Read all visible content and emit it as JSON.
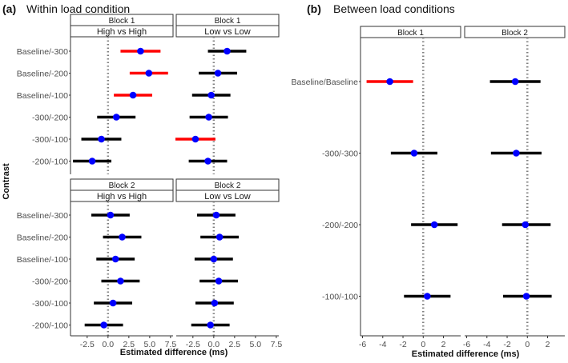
{
  "panel_a": {
    "label": "(a)",
    "title": "Within load condition",
    "ylabel": "Contrast",
    "xlabel": "Estimated difference (ms)"
  },
  "panel_b": {
    "label": "(b)",
    "title": "Between load conditions",
    "xlabel": "Estimated difference (ms)"
  },
  "colors": {
    "significant": "#ff0000",
    "nonsignificant": "#000000",
    "point": "#0000ff",
    "zero_line": "#808080"
  },
  "chart_data": [
    {
      "type": "scatter",
      "id": "a_b1_hh",
      "strip_top": "Block 1",
      "strip_bottom": "High vs High",
      "categories": [
        "Baseline/-300",
        "Baseline/-200",
        "Baseline/-100",
        "-300/-200",
        "-300/-100",
        "-200/-100"
      ],
      "estimate": [
        3.9,
        4.9,
        3.0,
        1.0,
        -0.8,
        -1.9
      ],
      "lower": [
        1.5,
        2.6,
        0.7,
        -1.3,
        -3.2,
        -4.2
      ],
      "upper": [
        6.3,
        7.2,
        5.3,
        3.3,
        1.6,
        0.4
      ],
      "significant": [
        true,
        true,
        true,
        false,
        false,
        false
      ],
      "xlim": [
        -4.5,
        7.8
      ],
      "xticks": [
        -2.5,
        0.0,
        2.5,
        5.0,
        7.5
      ],
      "xtick_labels": [
        "-2.5",
        "0.0",
        "2.5",
        "5.0",
        "7.5"
      ],
      "show_xticks": false,
      "show_yticks": true
    },
    {
      "type": "scatter",
      "id": "a_b1_ll",
      "strip_top": "Block 1",
      "strip_bottom": "Low vs Low",
      "categories": [
        "Baseline/-300",
        "Baseline/-200",
        "Baseline/-100",
        "-300/-200",
        "-300/-100",
        "-200/-100"
      ],
      "estimate": [
        1.6,
        0.5,
        -0.3,
        -0.6,
        -2.2,
        -0.7
      ],
      "lower": [
        -0.7,
        -1.8,
        -2.6,
        -2.9,
        -4.6,
        -3.0
      ],
      "upper": [
        3.9,
        2.8,
        2.0,
        1.7,
        0.2,
        1.6
      ],
      "significant": [
        false,
        false,
        false,
        false,
        true,
        false
      ],
      "xlim": [
        -4.5,
        7.8
      ],
      "xticks": [
        -2.5,
        0.0,
        2.5,
        5.0,
        7.5
      ],
      "xtick_labels": [
        "-2.5",
        "0.0",
        "2.5",
        "5.0",
        "7.5"
      ],
      "show_xticks": false,
      "show_yticks": false
    },
    {
      "type": "scatter",
      "id": "a_b2_hh",
      "strip_top": "Block 2",
      "strip_bottom": "High vs High",
      "categories": [
        "Baseline/-300",
        "Baseline/-200",
        "Baseline/-100",
        "-300/-200",
        "-300/-100",
        "-200/-100"
      ],
      "estimate": [
        0.3,
        1.7,
        0.9,
        1.5,
        0.6,
        -0.5
      ],
      "lower": [
        -2.0,
        -0.6,
        -1.4,
        -0.8,
        -1.7,
        -2.8
      ],
      "upper": [
        2.6,
        4.0,
        3.2,
        3.8,
        2.9,
        1.8
      ],
      "significant": [
        false,
        false,
        false,
        false,
        false,
        false
      ],
      "xlim": [
        -4.5,
        7.8
      ],
      "xticks": [
        -2.5,
        0.0,
        2.5,
        5.0,
        7.5
      ],
      "xtick_labels": [
        "-2.5",
        "0.0",
        "2.5",
        "5.0",
        "7.5"
      ],
      "show_xticks": true,
      "show_yticks": true
    },
    {
      "type": "scatter",
      "id": "a_b2_ll",
      "strip_top": "Block 2",
      "strip_bottom": "Low vs Low",
      "categories": [
        "Baseline/-300",
        "Baseline/-200",
        "Baseline/-100",
        "-300/-200",
        "-300/-100",
        "-200/-100"
      ],
      "estimate": [
        0.3,
        0.7,
        0.0,
        0.6,
        0.1,
        -0.4
      ],
      "lower": [
        -2.0,
        -1.6,
        -2.3,
        -1.7,
        -2.2,
        -2.7
      ],
      "upper": [
        2.6,
        3.0,
        2.3,
        2.9,
        2.4,
        1.9
      ],
      "significant": [
        false,
        false,
        false,
        false,
        false,
        false
      ],
      "xlim": [
        -4.5,
        7.8
      ],
      "xticks": [
        -2.5,
        0.0,
        2.5,
        5.0,
        7.5
      ],
      "xtick_labels": [
        "-2.5",
        "0.0",
        "2.5",
        "5.0",
        "7.5"
      ],
      "show_xticks": true,
      "show_yticks": false
    },
    {
      "type": "scatter",
      "id": "b_b1",
      "strip_top": "Block 1",
      "strip_bottom": "",
      "categories": [
        "Baseline/Baseline",
        "-300/-300",
        "-200/-200",
        "-100/-100"
      ],
      "estimate": [
        -3.3,
        -0.9,
        1.1,
        0.4
      ],
      "lower": [
        -5.6,
        -3.2,
        -1.2,
        -1.9
      ],
      "upper": [
        -1.0,
        1.4,
        3.4,
        2.7
      ],
      "significant": [
        true,
        false,
        false,
        false
      ],
      "xlim": [
        -6.2,
        3.7
      ],
      "xticks": [
        -6,
        -4,
        -2,
        0,
        2
      ],
      "xtick_labels": [
        "-6",
        "-4",
        "-2",
        "0",
        "2"
      ],
      "show_xticks": true,
      "show_yticks": true
    },
    {
      "type": "scatter",
      "id": "b_b2",
      "strip_top": "Block 2",
      "strip_bottom": "",
      "categories": [
        "Baseline/Baseline",
        "-300/-300",
        "-200/-200",
        "-100/-100"
      ],
      "estimate": [
        -1.2,
        -1.1,
        -0.2,
        -0.1
      ],
      "lower": [
        -3.7,
        -3.6,
        -2.5,
        -2.4
      ],
      "upper": [
        1.3,
        1.4,
        2.3,
        2.4
      ],
      "significant": [
        false,
        false,
        false,
        false
      ],
      "xlim": [
        -6.2,
        3.7
      ],
      "xticks": [
        -6,
        -4,
        -2,
        0,
        2
      ],
      "xtick_labels": [
        "-6",
        "-4",
        "-2",
        "0",
        "2"
      ],
      "show_xticks": true,
      "show_yticks": false
    }
  ]
}
